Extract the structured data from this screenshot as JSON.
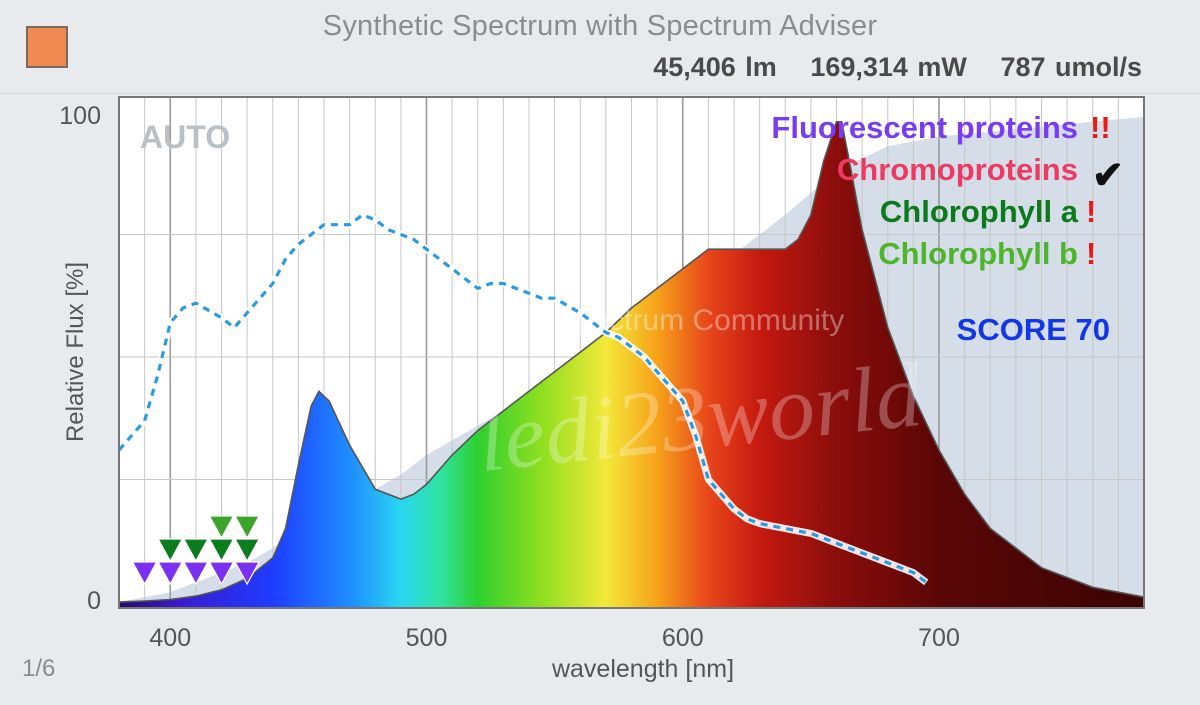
{
  "header": {
    "title": "Synthetic Spectrum with Spectrum Adviser",
    "swatch_color": "#f08a52",
    "lumens": "45,406 lm",
    "power": "169,314 mW",
    "ppf": "787 umol/s"
  },
  "pager": "1/6",
  "badge": "AUTO",
  "watermark": [
    "Spectrum Community",
    "ledi23world"
  ],
  "indicators": [
    {
      "label": "Fluorescent proteins",
      "mark": "!!",
      "color": "#7a3cf0",
      "mark_color": "#e51b1b"
    },
    {
      "label": "Chromoproteins",
      "mark": "✔",
      "color": "#ec3b63",
      "mark_color": "#111111"
    },
    {
      "label": "Chlorophyll a",
      "mark": "!",
      "color": "#0b7a1a",
      "mark_color": "#e51b1b"
    },
    {
      "label": "Chlorophyll b",
      "mark": "!",
      "color": "#4db52b",
      "mark_color": "#e51b1b"
    }
  ],
  "score": "SCORE 70",
  "chart_data": {
    "type": "area",
    "xlabel": "wavelength [nm]",
    "ylabel": "Relative Flux [%]",
    "xlim": [
      380,
      780
    ],
    "ylim": [
      0,
      100
    ],
    "xticks": [
      400,
      500,
      600,
      700
    ],
    "yticks": [
      0,
      100
    ],
    "grid": true,
    "series": [
      {
        "style": "filled",
        "x": [
          380,
          390,
          400,
          410,
          420,
          430,
          440,
          445,
          450,
          455,
          458,
          462,
          470,
          480,
          490,
          495,
          500,
          510,
          520,
          530,
          540,
          550,
          560,
          570,
          580,
          590,
          600,
          610,
          620,
          630,
          640,
          645,
          650,
          655,
          660,
          662,
          665,
          670,
          680,
          690,
          700,
          710,
          720,
          740,
          760,
          780
        ],
        "y": [
          0,
          0.2,
          0.5,
          1.2,
          2.5,
          4.8,
          9,
          15,
          28,
          40,
          43,
          41,
          32,
          23,
          21,
          22,
          24,
          30,
          35,
          39,
          43,
          47,
          51,
          55,
          60,
          64,
          68,
          72,
          72,
          72,
          72,
          74,
          79,
          90,
          98,
          98,
          90,
          76,
          56,
          42,
          31,
          22,
          15,
          7,
          3,
          1
        ]
      },
      {
        "style": "dashed",
        "color": "#2a9be0",
        "x": [
          380,
          385,
          390,
          395,
          400,
          405,
          410,
          420,
          425,
          430,
          435,
          440,
          445,
          450,
          455,
          460,
          470,
          475,
          480,
          485,
          490,
          495,
          500,
          510,
          515,
          520,
          525,
          530,
          540,
          545,
          550,
          560,
          565,
          570,
          575,
          580,
          585,
          590,
          600,
          605,
          610,
          620,
          625,
          630,
          650,
          660,
          670,
          680,
          690,
          695
        ],
        "y": [
          31,
          34,
          37,
          46,
          57,
          60,
          61,
          58,
          56,
          59,
          62,
          65,
          70,
          73,
          75,
          77,
          77,
          79,
          78,
          76,
          75,
          74,
          72,
          68,
          66,
          64,
          65,
          65,
          63,
          62,
          62,
          59,
          57,
          55,
          54,
          52,
          50,
          47,
          41,
          34,
          25,
          19,
          17,
          16,
          14,
          12,
          10,
          8,
          6,
          4
        ]
      }
    ],
    "markers": [
      {
        "color": "#7b2ff0",
        "x": [
          390,
          400,
          410,
          420,
          430
        ]
      },
      {
        "color": "#0b7d1e",
        "x": [
          400,
          410,
          420,
          430
        ]
      },
      {
        "color": "#3aa52a",
        "x": [
          420,
          430
        ]
      }
    ]
  }
}
